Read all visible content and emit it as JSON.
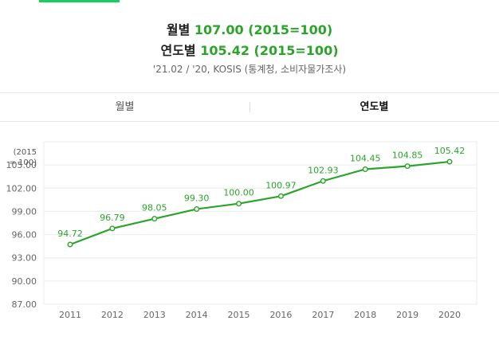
{
  "summary": {
    "monthly_label": "월별",
    "monthly_value": "107.00 (2015=100)",
    "yearly_label": "연도별",
    "yearly_value": "105.42 (2015=100)",
    "source": "'21.02 / '20, KOSIS (통계청, 소비자물가조사)"
  },
  "tabs": [
    {
      "label": "월별",
      "active": false
    },
    {
      "label": "연도별",
      "active": true
    }
  ],
  "colors": {
    "accent": "#19ce60",
    "line": "#2aa52a",
    "value_text": "#2aa52a"
  },
  "chart_data": {
    "type": "line",
    "ylabel": "(2015\n= 100)",
    "ylabel_lines": [
      "(2015",
      "= 100)"
    ],
    "x": [
      "2011",
      "2012",
      "2013",
      "2014",
      "2015",
      "2016",
      "2017",
      "2018",
      "2019",
      "2020"
    ],
    "values": [
      94.72,
      96.79,
      98.05,
      99.3,
      100.0,
      100.97,
      102.93,
      104.45,
      104.85,
      105.42
    ],
    "value_labels": [
      "94.72",
      "96.79",
      "98.05",
      "99.30",
      "100.00",
      "100.97",
      "102.93",
      "104.45",
      "104.85",
      "105.42"
    ],
    "y_ticks": [
      "87.00",
      "90.00",
      "93.00",
      "96.00",
      "99.00",
      "102.00",
      "105.00"
    ],
    "ylim": [
      87,
      108
    ],
    "grid": true,
    "legend": "none"
  }
}
